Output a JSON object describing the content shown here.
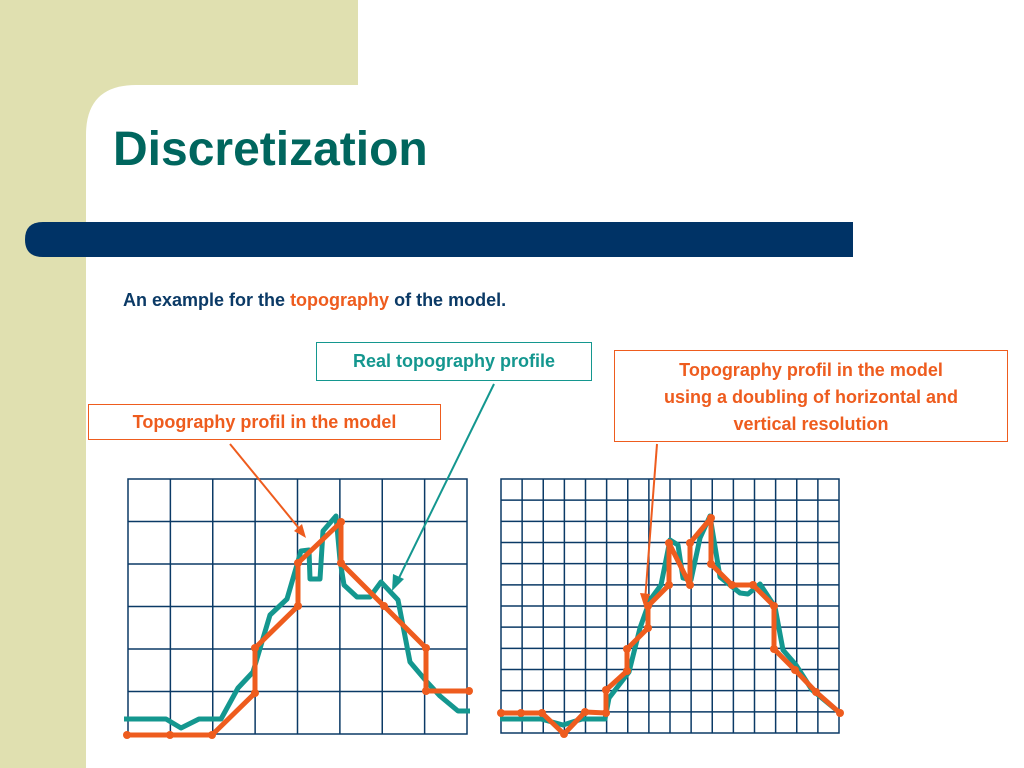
{
  "slide": {
    "title": "Discretization",
    "subtitle_before": "An example for the",
    "subtitle_highlight": "topography",
    "subtitle_after": "of the model."
  },
  "callouts": {
    "real": "Real topography profile",
    "model": "Topography profil in the model",
    "double": [
      "Topography profil in the model",
      "using a doubling of horizontal and",
      "vertical resolution"
    ]
  },
  "colors": {
    "title": "#00665e",
    "grid": "#0b3a66",
    "real_profile": "#14978f",
    "model_profile": "#ee5c1e",
    "accent_bar": "#003366",
    "side_panel": "#e0e0b0"
  }
}
